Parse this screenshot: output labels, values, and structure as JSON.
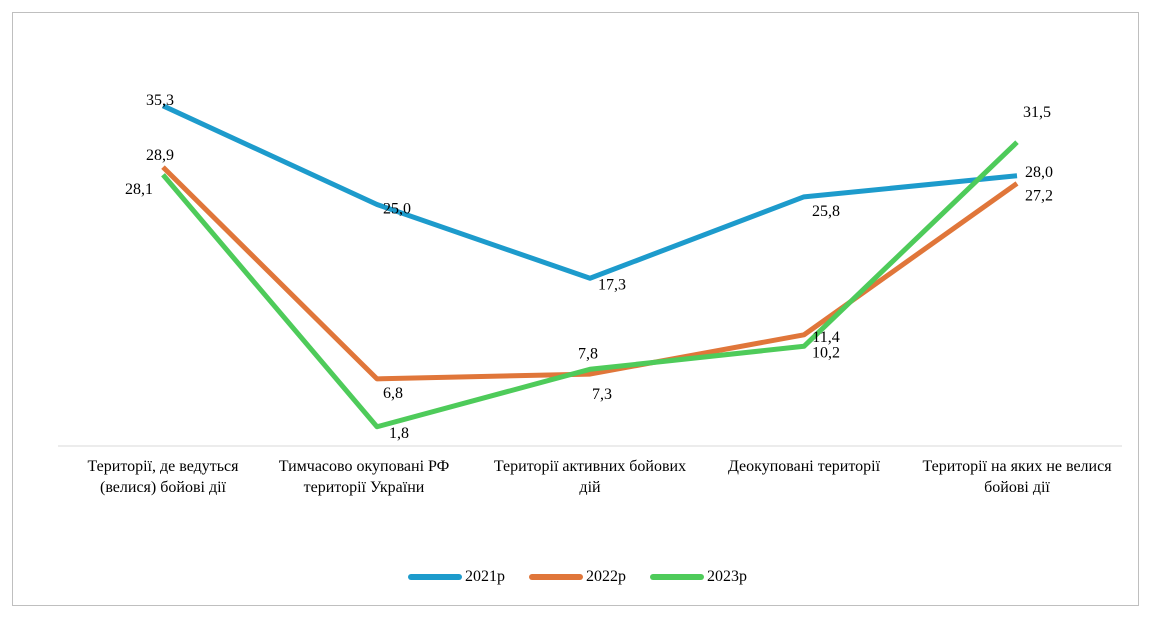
{
  "chart_data": {
    "type": "line",
    "title": "",
    "xlabel": "",
    "ylabel": "",
    "ylim": [
      0,
      36
    ],
    "grid": false,
    "legend_position": "bottom",
    "categories": [
      [
        "Території, де ведуться",
        "(велися) бойові дії"
      ],
      [
        "Тимчасово окуповані РФ",
        "території України"
      ],
      [
        "Території активних бойових",
        "дій"
      ],
      [
        "Деокуповані території",
        ""
      ],
      [
        "Території на яких не велися",
        "бойові дії"
      ]
    ],
    "series": [
      {
        "name": "2021р",
        "color": "#1d9bcc",
        "values": [
          35.3,
          25.0,
          17.3,
          25.8,
          28.0
        ],
        "labels": [
          "35,3",
          "25,0",
          "17,3",
          "25,8",
          "28,0"
        ]
      },
      {
        "name": "2022р",
        "color": "#e0763a",
        "values": [
          28.9,
          6.8,
          7.3,
          11.4,
          27.2
        ],
        "labels": [
          "28,9",
          "6,8",
          "7,3",
          "11,4",
          "27,2"
        ]
      },
      {
        "name": "2023р",
        "color": "#4ecb5a",
        "values": [
          28.1,
          1.8,
          7.8,
          10.2,
          31.5
        ],
        "labels": [
          "28,1",
          "1,8",
          "7,8",
          "10,2",
          "31,5"
        ]
      }
    ]
  }
}
